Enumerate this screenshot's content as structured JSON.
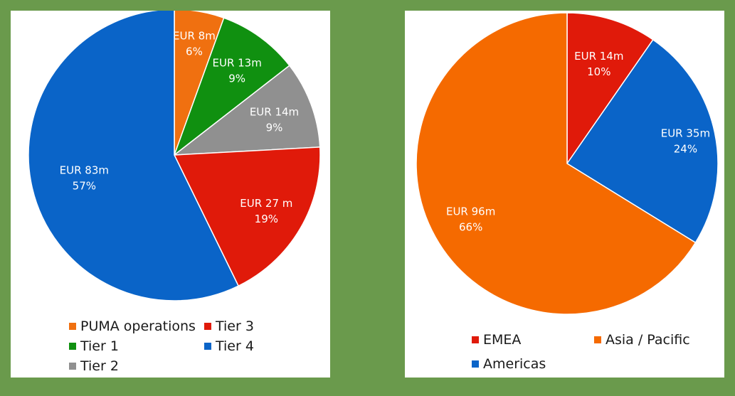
{
  "chart_data": [
    {
      "type": "pie",
      "title": "",
      "slices": [
        {
          "name": "PUMA operations",
          "value": 8,
          "label": "EUR 8m",
          "pct": "6%",
          "color": "#f07010"
        },
        {
          "name": "Tier 1",
          "value": 13,
          "label": "EUR 13m",
          "pct": "9%",
          "color": "#109010"
        },
        {
          "name": "Tier 2",
          "value": 14,
          "label": "EUR 14m",
          "pct": "9%",
          "color": "#909090"
        },
        {
          "name": "Tier 3",
          "value": 27,
          "label": "EUR 27 m",
          "pct": "19%",
          "color": "#e01a0a"
        },
        {
          "name": "Tier 4",
          "value": 83,
          "label": "EUR 83m",
          "pct": "57%",
          "color": "#0a64c8"
        }
      ],
      "legend": [
        "PUMA operations",
        "Tier 3",
        "Tier 1",
        "Tier 4",
        "Tier 2"
      ],
      "legend_position": "bottom"
    },
    {
      "type": "pie",
      "title": "",
      "slices": [
        {
          "name": "EMEA",
          "value": 14,
          "label": "EUR 14m",
          "pct": "10%",
          "color": "#e01a0a"
        },
        {
          "name": "Americas",
          "value": 35,
          "label": "EUR 35m",
          "pct": "24%",
          "color": "#0a64c8"
        },
        {
          "name": "Asia / Pacific",
          "value": 96,
          "label": "EUR 96m",
          "pct": "66%",
          "color": "#f56a00"
        }
      ],
      "legend": [
        "EMEA",
        "Asia / Pacific",
        "Americas"
      ],
      "legend_position": "bottom"
    }
  ]
}
